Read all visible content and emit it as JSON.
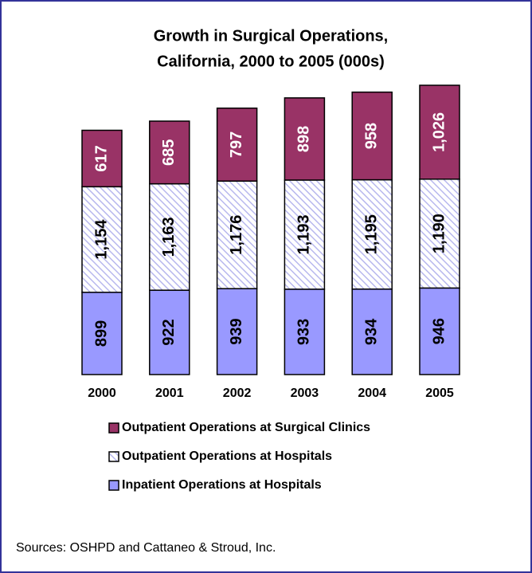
{
  "chart_data": {
    "type": "stacked_bar",
    "title": [
      "Growth in Surgical Operations,",
      "California, 2000 to 2005 (000s)"
    ],
    "categories": [
      "2000",
      "2001",
      "2002",
      "2003",
      "2004",
      "2005"
    ],
    "series": [
      {
        "name": "Inpatient Operations at Hospitals",
        "color": "#9999ff",
        "values": [
          899,
          922,
          939,
          933,
          934,
          946
        ],
        "value_labels": [
          "899",
          "922",
          "939",
          "933",
          "934",
          "946"
        ]
      },
      {
        "name": "Outpatient Operations at Hospitals",
        "color": "#ccccff",
        "pattern": "hatch",
        "values": [
          1154,
          1163,
          1176,
          1193,
          1195,
          1190
        ],
        "value_labels": [
          "1,154",
          "1,163",
          "1,176",
          "1,193",
          "1,195",
          "1,190"
        ]
      },
      {
        "name": "Outpatient Operations at Surgical Clinics",
        "color": "#993366",
        "values": [
          617,
          685,
          797,
          898,
          958,
          1026
        ],
        "value_labels": [
          "617",
          "685",
          "797",
          "898",
          "958",
          "1,026"
        ]
      }
    ],
    "source": "Sources: OSHPD and Cattaneo & Stroud, Inc."
  }
}
